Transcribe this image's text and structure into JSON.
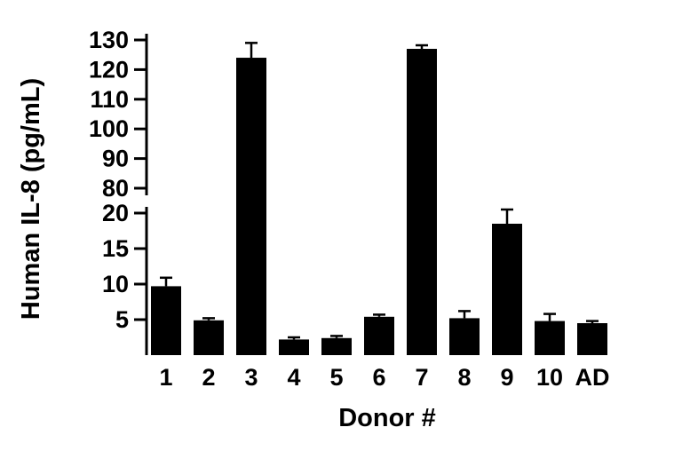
{
  "chart_data": {
    "type": "bar",
    "title": "",
    "xlabel": "Donor #",
    "ylabel": "Human IL-8 (pg/mL)",
    "categories": [
      "1",
      "2",
      "3",
      "4",
      "5",
      "6",
      "7",
      "8",
      "9",
      "10",
      "AD"
    ],
    "values": [
      9.7,
      4.9,
      124,
      2.2,
      2.4,
      5.4,
      127,
      5.2,
      18.5,
      4.8,
      4.5
    ],
    "errors": [
      1.2,
      0.3,
      5,
      0.3,
      0.3,
      0.3,
      1.2,
      1.0,
      2.0,
      1.0,
      0.3
    ],
    "bar_color": "#000000",
    "axis_color": "#000000",
    "background_color": "#ffffff",
    "grid": false,
    "legend": false,
    "axis_break": true,
    "segments": [
      {
        "min": 0,
        "max": 20,
        "ticks": [
          5,
          10,
          15,
          20
        ]
      },
      {
        "min": 80,
        "max": 130,
        "ticks": [
          80,
          90,
          100,
          110,
          120,
          130
        ]
      }
    ]
  }
}
